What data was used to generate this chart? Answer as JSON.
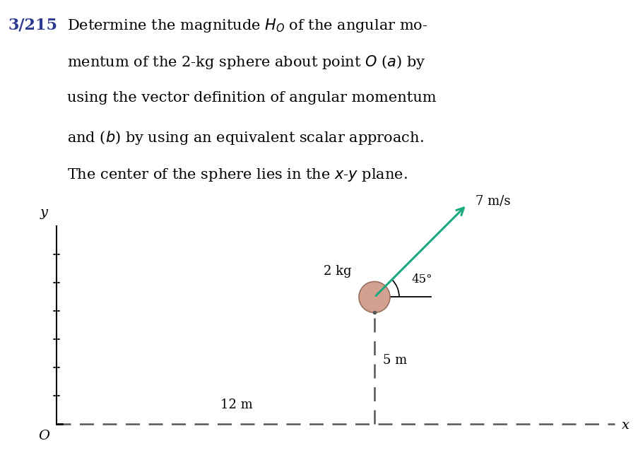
{
  "bg_color": "#ffffff",
  "fig_width": 9.04,
  "fig_height": 6.51,
  "dpi": 100,
  "problem_number": "3/215",
  "problem_number_color": "#2b3990",
  "text_fontsize": 15.0,
  "sphere_color": "#d4a090",
  "sphere_edge_color": "#9a7060",
  "dashed_color": "#555555",
  "arrow_color": "#1aaa80",
  "velocity_label": "7 m/s",
  "mass_label": "2 kg",
  "angle_label": "45°",
  "dist_x_label": "12 m",
  "dist_y_label": "5 m",
  "origin_label": "O",
  "x_label": "x",
  "y_label": "y"
}
